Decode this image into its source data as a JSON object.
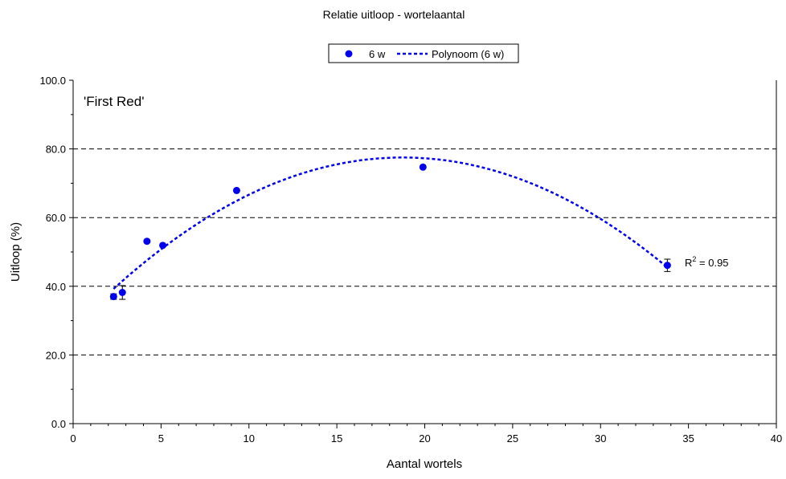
{
  "chart_data": {
    "type": "scatter",
    "title": "Relatie uitloop - wortelaantal",
    "xlabel": "Aantal wortels",
    "ylabel": "Uitloop (%)",
    "xlim": [
      0,
      40
    ],
    "ylim": [
      0,
      100
    ],
    "x_ticks": [
      "0",
      "5",
      "10",
      "15",
      "20",
      "25",
      "30",
      "35",
      "40"
    ],
    "y_ticks": [
      "0.0",
      "20.0",
      "40.0",
      "60.0",
      "80.0",
      "100.0"
    ],
    "grid": "horizontal-dashed",
    "legend_position": "top",
    "annotation": "'First Red'",
    "r2_label": "R",
    "r2_sup": "2",
    "r2_value": " = 0.95",
    "marker_color": "#0000ee",
    "series": [
      {
        "name": "6 w",
        "points": [
          {
            "x": 2.3,
            "y": 37.0,
            "err": 0.8
          },
          {
            "x": 2.8,
            "y": 38.2,
            "err": 2.0
          },
          {
            "x": 4.2,
            "y": 53.1,
            "err": 0
          },
          {
            "x": 5.1,
            "y": 51.9,
            "err": 0
          },
          {
            "x": 9.3,
            "y": 67.9,
            "err": 0
          },
          {
            "x": 19.9,
            "y": 74.7,
            "err": 0
          },
          {
            "x": 33.8,
            "y": 46.1,
            "err": 1.8
          }
        ]
      }
    ],
    "trendline": {
      "name": "Polynoom (6 w)",
      "type": "polynomial-2",
      "x_range": [
        2.3,
        33.8
      ],
      "coefficients": [
        27.8,
        5.3,
        -0.1413
      ]
    }
  }
}
